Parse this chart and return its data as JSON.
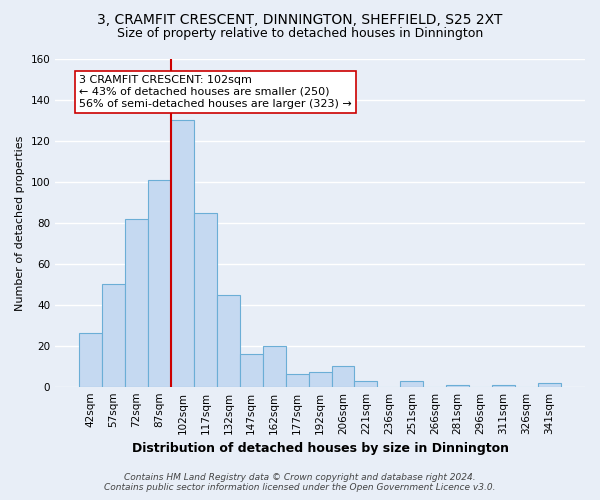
{
  "title": "3, CRAMFIT CRESCENT, DINNINGTON, SHEFFIELD, S25 2XT",
  "subtitle": "Size of property relative to detached houses in Dinnington",
  "xlabel": "Distribution of detached houses by size in Dinnington",
  "ylabel": "Number of detached properties",
  "bar_labels": [
    "42sqm",
    "57sqm",
    "72sqm",
    "87sqm",
    "102sqm",
    "117sqm",
    "132sqm",
    "147sqm",
    "162sqm",
    "177sqm",
    "192sqm",
    "206sqm",
    "221sqm",
    "236sqm",
    "251sqm",
    "266sqm",
    "281sqm",
    "296sqm",
    "311sqm",
    "326sqm",
    "341sqm"
  ],
  "bar_values": [
    26,
    50,
    82,
    101,
    130,
    85,
    45,
    16,
    20,
    6,
    7,
    10,
    3,
    0,
    3,
    0,
    1,
    0,
    1,
    0,
    2
  ],
  "bar_color": "#c5d9f1",
  "bar_edge_color": "#6baed6",
  "highlight_index": 4,
  "highlight_line_color": "#cc0000",
  "ylim": [
    0,
    160
  ],
  "yticks": [
    0,
    20,
    40,
    60,
    80,
    100,
    120,
    140,
    160
  ],
  "annotation_text": "3 CRAMFIT CRESCENT: 102sqm\n← 43% of detached houses are smaller (250)\n56% of semi-detached houses are larger (323) →",
  "annotation_box_color": "#ffffff",
  "annotation_box_edge_color": "#cc0000",
  "footer_line1": "Contains HM Land Registry data © Crown copyright and database right 2024.",
  "footer_line2": "Contains public sector information licensed under the Open Government Licence v3.0.",
  "background_color": "#e8eef7",
  "grid_color": "#ffffff",
  "title_fontsize": 10,
  "subtitle_fontsize": 9,
  "xlabel_fontsize": 9,
  "ylabel_fontsize": 8,
  "tick_fontsize": 7.5,
  "annotation_fontsize": 8,
  "footer_fontsize": 6.5
}
